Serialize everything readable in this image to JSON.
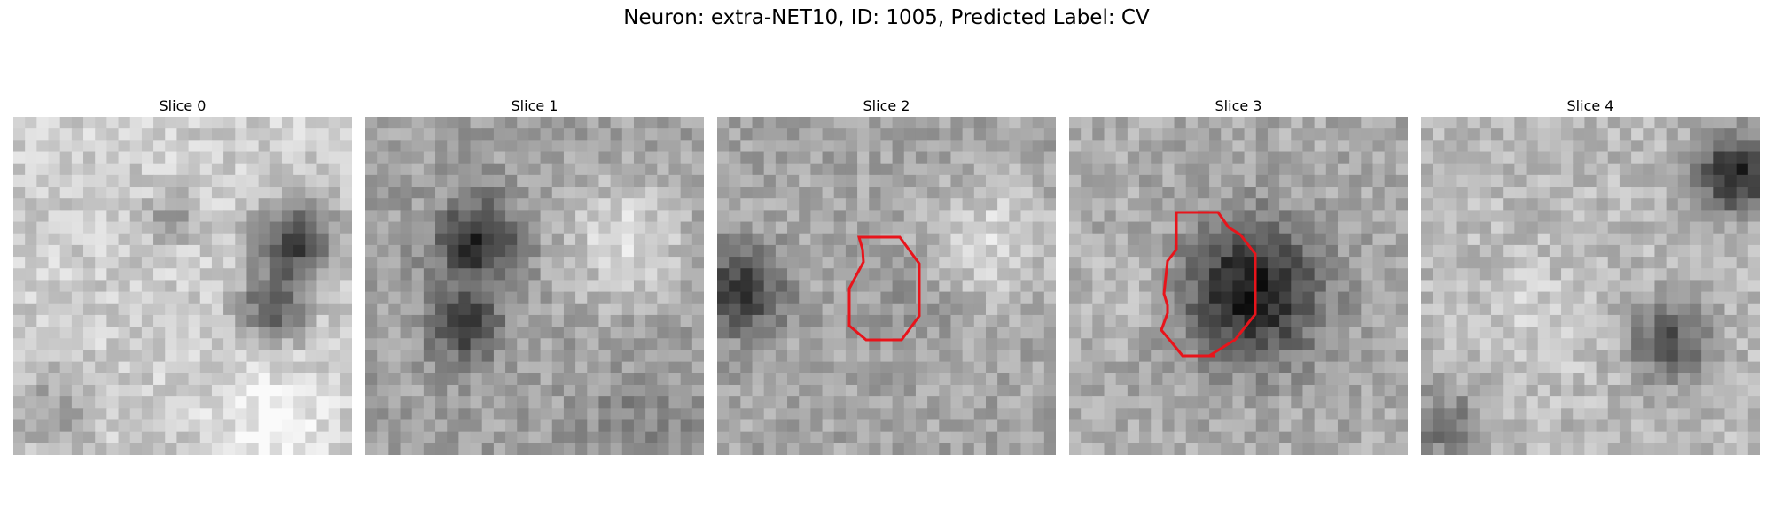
{
  "figure": {
    "title": "Neuron: extra-NET10, ID: 1005, Predicted Label: CV",
    "outline_color": "#e8141b"
  },
  "slices": [
    {
      "title": "Slice 0",
      "has_outline": false,
      "tone": {
        "base": 200,
        "dark_blobs": "right-ridge",
        "light_patch": "lower-right"
      }
    },
    {
      "title": "Slice 1",
      "has_outline": false,
      "tone": {
        "base": 150,
        "dark_blobs": "diagonal-band-left",
        "light_patch": "right"
      }
    },
    {
      "title": "Slice 2",
      "has_outline": true,
      "tone": {
        "base": 160,
        "dark_blobs": "left-edge",
        "light_patch": "upper-right"
      }
    },
    {
      "title": "Slice 3",
      "has_outline": true,
      "tone": {
        "base": 160,
        "dark_blobs": "center-disc",
        "light_patch": "none"
      }
    },
    {
      "title": "Slice 4",
      "has_outline": false,
      "tone": {
        "base": 180,
        "dark_blobs": "right-top",
        "light_patch": "left"
      }
    }
  ]
}
